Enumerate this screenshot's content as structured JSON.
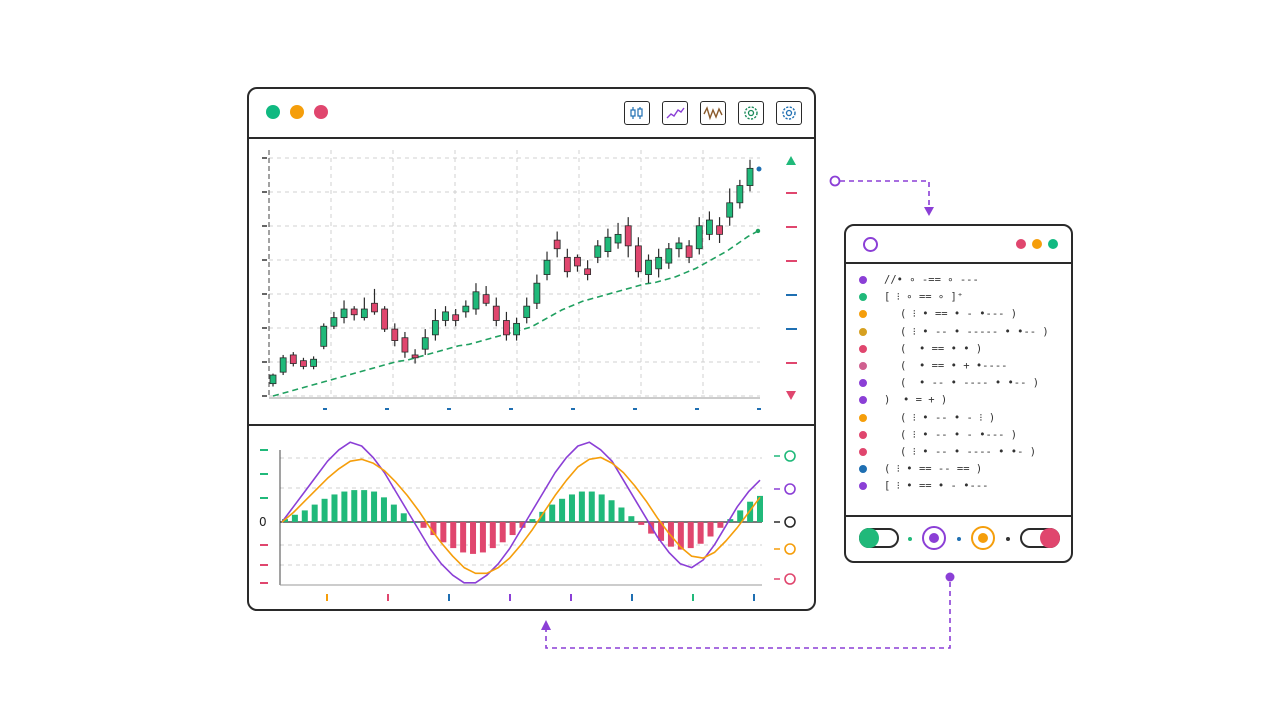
{
  "chart_window": {
    "title_dots": [
      "#10b981",
      "#f59e0b",
      "#e0466e"
    ],
    "toolbar": [
      {
        "name": "candlestick-icon",
        "color": "#1f6fb2"
      },
      {
        "name": "line-chart-icon",
        "color": "#8b3fd6"
      },
      {
        "name": "oscillator-icon",
        "color": "#8a5a2b"
      },
      {
        "name": "gear-icon",
        "color": "#1b8a5a"
      },
      {
        "name": "settings-icon",
        "color": "#1f6fb2"
      }
    ],
    "oscillator_zero_label": "0"
  },
  "colors": {
    "bull": "#20b97a",
    "bear": "#e0466e",
    "ma": "#20a060",
    "macd": "#8b3fd6",
    "signal": "#f59e0b",
    "grid": "#d0d0d0",
    "connector": "#8b3fd6"
  },
  "chart_data": [
    {
      "type": "candlestick",
      "series": [
        {
          "name": "",
          "values": [
            [
              10,
              16,
              8,
              17
            ],
            [
              18,
              28,
              16,
              30
            ],
            [
              30,
              24,
              22,
              32
            ],
            [
              26,
              22,
              20,
              28
            ],
            [
              22,
              27,
              20,
              29
            ],
            [
              36,
              50,
              34,
              52
            ],
            [
              50,
              56,
              48,
              60
            ],
            [
              56,
              62,
              52,
              68
            ],
            [
              62,
              58,
              54,
              64
            ],
            [
              56,
              62,
              54,
              70
            ],
            [
              66,
              60,
              58,
              76
            ],
            [
              62,
              48,
              46,
              64
            ],
            [
              48,
              40,
              36,
              52
            ],
            [
              42,
              32,
              28,
              46
            ],
            [
              30,
              28,
              24,
              34
            ],
            [
              34,
              42,
              30,
              48
            ],
            [
              44,
              54,
              40,
              62
            ],
            [
              54,
              60,
              50,
              64
            ],
            [
              58,
              54,
              50,
              62
            ],
            [
              60,
              64,
              56,
              68
            ],
            [
              62,
              74,
              58,
              80
            ],
            [
              72,
              66,
              64,
              78
            ],
            [
              64,
              54,
              50,
              70
            ],
            [
              54,
              44,
              40,
              60
            ],
            [
              44,
              52,
              40,
              56
            ],
            [
              56,
              64,
              52,
              70
            ],
            [
              66,
              80,
              62,
              86
            ],
            [
              86,
              96,
              82,
              102
            ],
            [
              110,
              104,
              98,
              116
            ],
            [
              98,
              88,
              84,
              104
            ],
            [
              98,
              92,
              88,
              100
            ],
            [
              90,
              86,
              82,
              96
            ],
            [
              98,
              106,
              94,
              110
            ],
            [
              102,
              112,
              98,
              118
            ],
            [
              108,
              114,
              104,
              122
            ],
            [
              120,
              106,
              98,
              126
            ],
            [
              106,
              88,
              84,
              112
            ],
            [
              86,
              96,
              80,
              100
            ],
            [
              90,
              98,
              84,
              104
            ],
            [
              94,
              104,
              90,
              108
            ],
            [
              104,
              108,
              98,
              112
            ],
            [
              106,
              98,
              94,
              110
            ],
            [
              104,
              120,
              100,
              126
            ],
            [
              114,
              124,
              110,
              130
            ],
            [
              120,
              114,
              108,
              126
            ],
            [
              126,
              136,
              120,
              146
            ],
            [
              136,
              148,
              132,
              152
            ],
            [
              148,
              160,
              144,
              166
            ]
          ]
        },
        {
          "name": "",
          "type": "line",
          "values": [
            0,
            2,
            4,
            6,
            8,
            10,
            12,
            14,
            16,
            18,
            20,
            22,
            24,
            25,
            27,
            29,
            31,
            33,
            35,
            36,
            38,
            40,
            42,
            44,
            46,
            48,
            52,
            56,
            60,
            63,
            66,
            68,
            70,
            72,
            74,
            76,
            78,
            79,
            81,
            83,
            86,
            89,
            93,
            97,
            101,
            106,
            111,
            115
          ]
        }
      ]
    },
    {
      "type": "bar",
      "series": [
        {
          "name": "",
          "values": [
            2,
            5,
            8,
            12,
            16,
            19,
            21,
            22,
            22,
            21,
            17,
            12,
            6,
            0,
            -4,
            -9,
            -14,
            -18,
            -21,
            -22,
            -21,
            -18,
            -14,
            -9,
            -4,
            2,
            7,
            12,
            16,
            19,
            21,
            21,
            19,
            15,
            10,
            4,
            -2,
            -8,
            -13,
            -17,
            -19,
            -18,
            -15,
            -10,
            -4,
            2,
            8,
            14,
            18
          ]
        },
        {
          "name": "",
          "type": "line",
          "values": [
            0,
            8,
            16,
            24,
            32,
            38,
            42,
            40,
            34,
            26,
            16,
            6,
            -4,
            -14,
            -22,
            -28,
            -32,
            -32,
            -28,
            -22,
            -14,
            -4,
            6,
            16,
            26,
            34,
            40,
            42,
            38,
            32,
            22,
            12,
            2,
            -8,
            -16,
            -22,
            -24,
            -20,
            -12,
            -2,
            8,
            16,
            22
          ]
        },
        {
          "name": "",
          "type": "line",
          "values": [
            0,
            5,
            11,
            17,
            23,
            28,
            32,
            33,
            31,
            27,
            21,
            14,
            6,
            -3,
            -11,
            -18,
            -24,
            -27,
            -27,
            -24,
            -19,
            -12,
            -4,
            5,
            14,
            22,
            29,
            33,
            34,
            31,
            26,
            19,
            11,
            2,
            -6,
            -13,
            -18,
            -19,
            -16,
            -10,
            -3,
            5,
            13
          ]
        }
      ]
    }
  ],
  "code_window": {
    "title_dots": [
      "#e0466e",
      "#f59e0b",
      "#10b981"
    ],
    "lines": [
      {
        "marker": "#8b3fd6",
        "indent": 0,
        "text": "//• ∘ ‑== ∘ ‑‑‑"
      },
      {
        "marker": "#20b97a",
        "indent": 0,
        "text": "[ ⁝ ∘ == ∘ ]⁺"
      },
      {
        "marker": "#f59e0b",
        "indent": 1,
        "text": "( ⁝ • == • ‑ •‑‑‑ )"
      },
      {
        "marker": "#d6a020",
        "indent": 1,
        "text": "( ⁝ • ‑‑ • ‑‑‑‑‑ • •‑‑ )"
      },
      {
        "marker": "#e0466e",
        "indent": 1,
        "text": "(  • == • • )"
      },
      {
        "marker": "#d06090",
        "indent": 1,
        "text": "(  • == • + •‑‑‑‑"
      },
      {
        "marker": "#8b3fd6",
        "indent": 1,
        "text": "(  • ‑‑ • ‑‑‑‑ • •‑‑ )"
      },
      {
        "marker": "#8b3fd6",
        "indent": 0,
        "text": ")  • = + )"
      },
      {
        "marker": "#f59e0b",
        "indent": 1,
        "text": "( ⁝ • ‑‑ • ‑ ⁝ )"
      },
      {
        "marker": "#e0466e",
        "indent": 1,
        "text": "( ⁝ • ‑‑ • ‑ •‑‑‑ )"
      },
      {
        "marker": "#e0466e",
        "indent": 1,
        "text": "( ⁝ • ‑‑ • ‑‑‑‑ • •‑ )"
      },
      {
        "marker": "#1f6fb2",
        "indent": 0,
        "text": "( ⁝ • == ‑‑ == )"
      },
      {
        "marker": "#8b3fd6",
        "indent": 0,
        "text": "[ ⁝ • == • ‑ •‑‑‑"
      }
    ],
    "footer": {
      "toggle_on_color": "#20b97a",
      "radio_1_color": "#8b3fd6",
      "radio_2_color": "#f59e0b",
      "toggle_off_color": "#e0466e"
    }
  }
}
